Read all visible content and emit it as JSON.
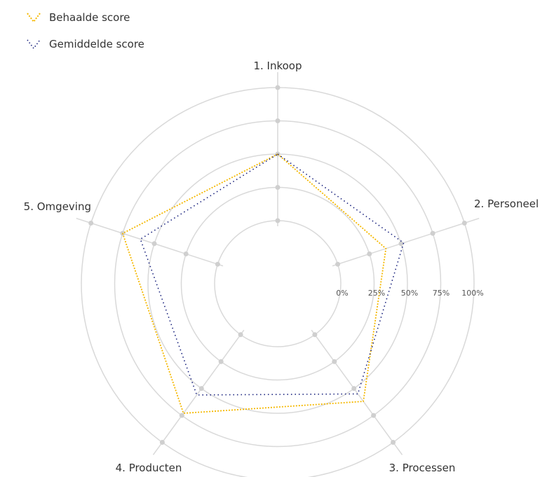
{
  "chart_data": {
    "type": "radar",
    "axes": [
      "1. Inkoop",
      "2. Personeel",
      "3. Processen",
      "4. Producten",
      "5. Omgeving"
    ],
    "ticks": [
      "0%",
      "25%",
      "50%",
      "75%",
      "100%"
    ],
    "rmax": 100,
    "series": [
      {
        "name": "Behaalde score",
        "values": [
          50,
          38,
          62,
          73,
          75
        ],
        "color": "#f5b800",
        "dash": "2,2"
      },
      {
        "name": "Gemiddelde score",
        "values": [
          50,
          52,
          55,
          56,
          61
        ],
        "color": "#1a237e",
        "dash": "1.5,4"
      }
    ],
    "legend_position": "top-left",
    "grid": true
  }
}
